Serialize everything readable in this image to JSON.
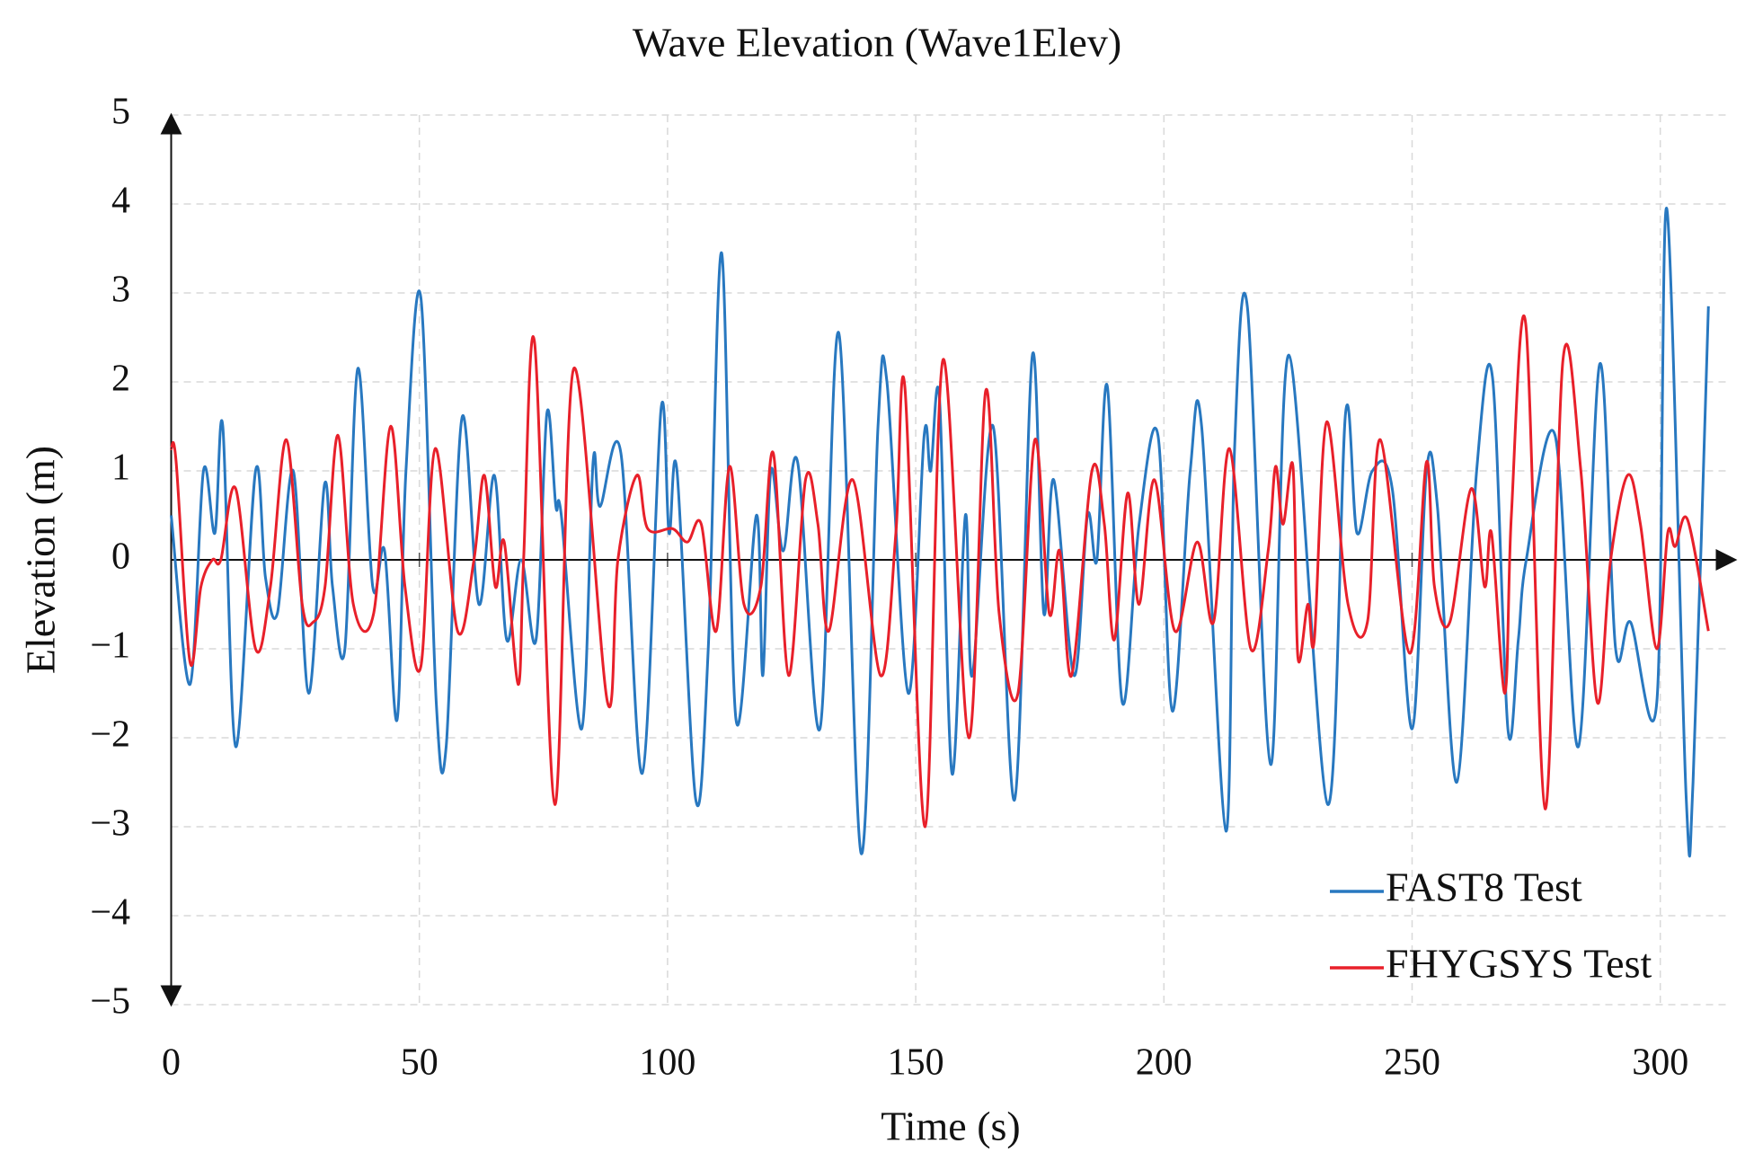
{
  "chart_data": {
    "type": "line",
    "title": "Wave Elevation (Wave1Elev)",
    "xlabel": "Time (s)",
    "ylabel": "Elevation (m)",
    "xlim": [
      0,
      314
    ],
    "ylim": [
      -5,
      5
    ],
    "xticks": [
      0,
      50,
      100,
      150,
      200,
      250,
      300
    ],
    "yticks": [
      {
        "value": -5,
        "label": "−5"
      },
      {
        "value": -4,
        "label": "−4"
      },
      {
        "value": -3,
        "label": "−3"
      },
      {
        "value": -2,
        "label": "−2"
      },
      {
        "value": -1,
        "label": "−1"
      },
      0,
      1,
      2,
      3,
      4,
      5
    ],
    "grid": true,
    "legend": "lower right",
    "series": [
      {
        "name": "FAST8 Test",
        "color": "#2878c0",
        "x": [
          0,
          3.8,
          6.5,
          8.8,
          10.4,
          13,
          17,
          19,
          21.4,
          24.6,
          27.7,
          30.9,
          32.5,
          35,
          37.6,
          40.6,
          43,
          45.5,
          47.3,
          50.3,
          53.4,
          55.4,
          58.6,
          62,
          65.1,
          67.6,
          70.5,
          73.5,
          75.7,
          77.5,
          78.6,
          82.7,
          85,
          86.4,
          90.6,
          94.9,
          98.7,
          100.3,
          101.9,
          105.7,
          108.2,
          110.9,
          113.8,
          117.9,
          119.2,
          120.8,
          123.3,
          126.2,
          130.7,
          134.5,
          139,
          142.4,
          144.2,
          148.5,
          151.7,
          153,
          154.8,
          157.3,
          160,
          161.4,
          165.6,
          169.9,
          173.5,
          175.8,
          177.8,
          181.9,
          184.6,
          186.5,
          188.6,
          191.6,
          195,
          198.8,
          201.7,
          205.3,
          207.6,
          212.5,
          214.2,
          216.8,
          221.5,
          225.2,
          233,
          236.6,
          238.9,
          242,
          246,
          250,
          252.9,
          255.1,
          259,
          263,
          266.2,
          269.3,
          271.4,
          273,
          278.8,
          283.5,
          287.8,
          291,
          294,
          299.3,
          301.3,
          305.2,
          306.6,
          309.7
        ],
        "values": [
          0.5,
          -1.4,
          1.0,
          0.3,
          1.5,
          -2.1,
          1.0,
          -0.2,
          -0.6,
          1.0,
          -1.5,
          0.85,
          -0.3,
          -1.0,
          2.15,
          -0.3,
          0.1,
          -1.8,
          1.0,
          2.95,
          -1.6,
          -2.1,
          1.6,
          -0.5,
          0.95,
          -0.9,
          0.0,
          -0.9,
          1.65,
          0.6,
          0.5,
          -1.9,
          1.1,
          0.6,
          1.2,
          -2.4,
          1.7,
          0.3,
          1.0,
          -2.7,
          -1.0,
          3.45,
          -1.8,
          0.5,
          -1.3,
          1.0,
          0.1,
          1.1,
          -1.9,
          2.55,
          -3.3,
          1.5,
          2.0,
          -1.5,
          1.4,
          1.0,
          1.8,
          -2.4,
          0.5,
          -1.3,
          1.5,
          -2.7,
          2.3,
          -0.6,
          0.9,
          -1.3,
          0.5,
          0.0,
          1.95,
          -1.6,
          0.4,
          1.4,
          -1.7,
          1.0,
          1.5,
          -3.05,
          1.2,
          2.85,
          -2.3,
          2.3,
          -2.75,
          1.65,
          0.3,
          1.0,
          0.8,
          -1.9,
          1.0,
          0.6,
          -2.5,
          1.0,
          2.05,
          -1.9,
          -0.9,
          0.0,
          1.4,
          -2.1,
          2.2,
          -1.0,
          -0.7,
          -1.6,
          3.95,
          -2.65,
          -2.5,
          2.85
        ]
      },
      {
        "name": "FHYGSYS Test",
        "color": "#e8202a",
        "x": [
          0,
          1,
          3.8,
          6,
          8.3,
          10,
          13,
          17,
          20,
          23.2,
          26.4,
          28.6,
          31,
          33.6,
          36.7,
          40.8,
          44.2,
          47.1,
          50.3,
          53.2,
          57.7,
          61,
          63.1,
          65.3,
          67.1,
          69.9,
          71,
          73.2,
          77.3,
          81.1,
          87.9,
          90,
          93.8,
          96,
          101,
          104,
          106.8,
          109.8,
          112.5,
          115.4,
          118.8,
          121.3,
          124.4,
          127.8,
          130.3,
          132.5,
          137.3,
          142.9,
          146,
          147.8,
          151.9,
          155.5,
          160.7,
          164.1,
          166.8,
          170.6,
          174,
          176.9,
          179,
          181.4,
          185.5,
          188,
          190,
          192.7,
          195,
          198.1,
          202.2,
          206.7,
          210,
          213.2,
          217.5,
          221,
          222.5,
          224,
          226,
          227,
          229,
          230.3,
          232.8,
          237.1,
          241,
          243.6,
          249.5,
          252.9,
          254.5,
          257.6,
          261.9,
          264.6,
          266,
          268.7,
          270,
          272.9,
          276.8,
          280.4,
          284,
          287.3,
          290,
          293.4,
          296,
          299.3,
          301.5,
          303,
          305.5,
          309.7
        ],
        "values": [
          1.25,
          1.1,
          -1.15,
          -0.3,
          0.0,
          0.0,
          0.8,
          -1.0,
          -0.3,
          1.35,
          -0.5,
          -0.7,
          -0.3,
          1.4,
          -0.5,
          -0.6,
          1.5,
          -0.3,
          -1.2,
          1.25,
          -0.8,
          0.0,
          0.95,
          -0.3,
          0.2,
          -1.4,
          0.0,
          2.45,
          -2.75,
          2.15,
          -1.6,
          0.0,
          0.95,
          0.35,
          0.35,
          0.2,
          0.4,
          -0.8,
          1.05,
          -0.5,
          -0.3,
          1.2,
          -1.3,
          0.9,
          0.4,
          -0.8,
          0.9,
          -1.3,
          0.3,
          1.95,
          -3.0,
          2.25,
          -2.0,
          1.9,
          -0.6,
          -1.5,
          1.35,
          -0.6,
          0.1,
          -1.3,
          1.0,
          0.4,
          -0.9,
          0.75,
          -0.5,
          0.9,
          -0.8,
          0.2,
          -0.7,
          1.25,
          -1.0,
          0.1,
          1.05,
          0.4,
          1.05,
          -1.1,
          -0.5,
          -0.9,
          1.55,
          -0.5,
          -0.7,
          1.35,
          -1.05,
          1.1,
          -0.3,
          -0.7,
          0.8,
          -0.3,
          0.3,
          -1.5,
          0.5,
          2.65,
          -2.8,
          2.25,
          1.0,
          -1.6,
          0.0,
          0.95,
          0.4,
          -1.0,
          0.3,
          0.15,
          0.45,
          -0.8
        ]
      }
    ]
  }
}
